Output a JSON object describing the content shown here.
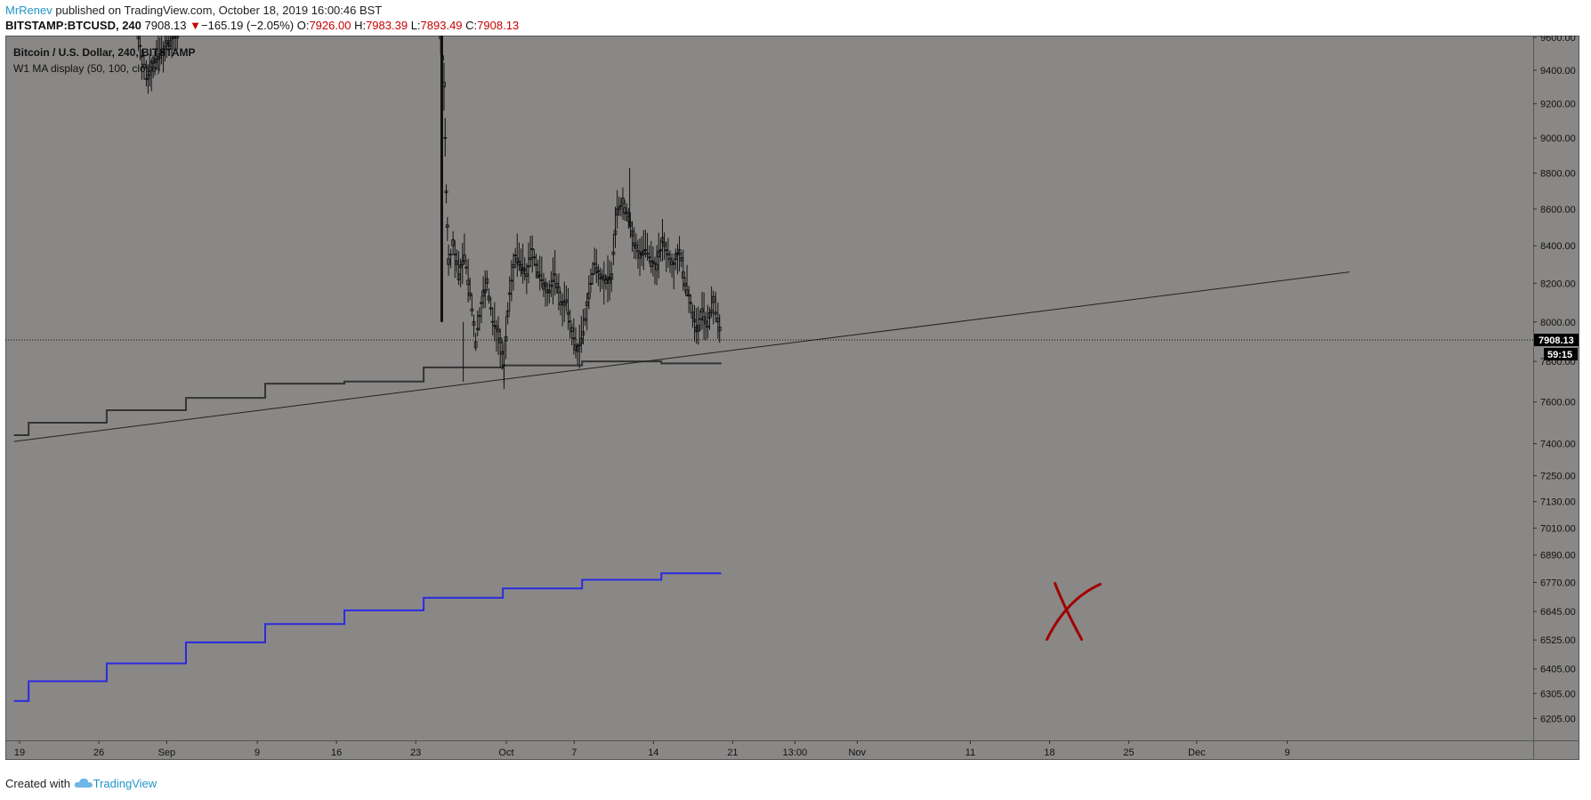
{
  "header": {
    "author": "MrRenev",
    "published_text": " published on TradingView.com, October 18, 2019 16:00:46 BST",
    "symbol": "BITSTAMP:BTCUSD, 240",
    "last": "7908.13",
    "down_arrow": "▼",
    "change": "−165.19 (−2.05%)",
    "o_label": "O:",
    "o_value": "7926.00",
    "h_label": "H:",
    "h_value": "7983.39",
    "l_label": "L:",
    "l_value": "7893.49",
    "c_label": "C:",
    "c_value": "7908.13"
  },
  "legend": {
    "series_title": "Bitcoin / U.S. Dollar, 240, BITSTAMP",
    "indicator": "W1 MA display (50, 100, close)"
  },
  "footer": {
    "created_with": "Created with",
    "brand": "TradingView"
  },
  "colors": {
    "chart_bg": "#8a8886",
    "candles": "#111111",
    "ma_fast": "#333333",
    "ma_slow": "#2a2ae0",
    "trendline": "#222222",
    "annotation_x": "#a00000",
    "price_label_bg": "#000000",
    "accent": "#2196c9"
  },
  "chart_data": {
    "type": "candlestick",
    "symbol": "BITSTAMP:BTCUSD",
    "interval": "240",
    "scale": "log",
    "ylim": [
      6150,
      9600
    ],
    "y_ticks": [
      "9600.00",
      "9400.00",
      "9200.00",
      "9000.00",
      "8800.00",
      "8600.00",
      "8400.00",
      "8200.00",
      "8000.00",
      "7800.00",
      "7600.00",
      "7400.00",
      "7250.00",
      "7130.00",
      "7010.00",
      "6890.00",
      "6770.00",
      "6645.00",
      "6525.00",
      "6405.00",
      "6305.00",
      "6205.00"
    ],
    "x_ticks": [
      {
        "day": 0,
        "label": "19"
      },
      {
        "day": 7,
        "label": "26"
      },
      {
        "day": 13,
        "label": "Sep"
      },
      {
        "day": 21,
        "label": "9"
      },
      {
        "day": 28,
        "label": "16"
      },
      {
        "day": 35,
        "label": "23"
      },
      {
        "day": 43,
        "label": "Oct"
      },
      {
        "day": 49,
        "label": "7"
      },
      {
        "day": 56,
        "label": "14"
      },
      {
        "day": 63,
        "label": "21"
      },
      {
        "day": 68.5,
        "label": "13:00"
      },
      {
        "day": 74,
        "label": "Nov"
      },
      {
        "day": 84,
        "label": "11"
      },
      {
        "day": 91,
        "label": "18"
      },
      {
        "day": 98,
        "label": "25"
      },
      {
        "day": 104,
        "label": "Dec"
      },
      {
        "day": 112,
        "label": "9"
      }
    ],
    "price_path": [
      [
        10.5,
        9620
      ],
      [
        10.8,
        9480
      ],
      [
        11.2,
        9350
      ],
      [
        11.8,
        9440
      ],
      [
        12.4,
        9500
      ],
      [
        13.0,
        9560
      ],
      [
        13.6,
        9600
      ],
      [
        14.1,
        9620
      ],
      [
        37.2,
        9620
      ],
      [
        37.5,
        9300
      ],
      [
        37.7,
        8700
      ],
      [
        37.9,
        8300
      ],
      [
        38.3,
        8400
      ],
      [
        38.8,
        8250
      ],
      [
        39.3,
        8350
      ],
      [
        39.8,
        8150
      ],
      [
        40.3,
        7900
      ],
      [
        40.8,
        8100
      ],
      [
        41.3,
        8200
      ],
      [
        41.8,
        8000
      ],
      [
        42.3,
        7950
      ],
      [
        42.8,
        7780
      ],
      [
        43.3,
        8150
      ],
      [
        43.8,
        8350
      ],
      [
        44.3,
        8300
      ],
      [
        44.8,
        8250
      ],
      [
        45.3,
        8380
      ],
      [
        45.8,
        8260
      ],
      [
        46.3,
        8200
      ],
      [
        46.8,
        8150
      ],
      [
        47.3,
        8250
      ],
      [
        47.8,
        8100
      ],
      [
        48.3,
        8100
      ],
      [
        48.8,
        7950
      ],
      [
        49.3,
        7850
      ],
      [
        49.8,
        7950
      ],
      [
        50.3,
        8150
      ],
      [
        50.8,
        8300
      ],
      [
        51.3,
        8250
      ],
      [
        51.8,
        8200
      ],
      [
        52.3,
        8250
      ],
      [
        52.8,
        8600
      ],
      [
        53.3,
        8630
      ],
      [
        53.8,
        8560
      ],
      [
        54.3,
        8400
      ],
      [
        54.8,
        8360
      ],
      [
        55.3,
        8380
      ],
      [
        55.8,
        8320
      ],
      [
        56.3,
        8300
      ],
      [
        56.8,
        8420
      ],
      [
        57.3,
        8350
      ],
      [
        57.8,
        8300
      ],
      [
        58.3,
        8380
      ],
      [
        58.8,
        8200
      ],
      [
        59.3,
        8100
      ],
      [
        59.8,
        7950
      ],
      [
        60.3,
        8050
      ],
      [
        60.8,
        7980
      ],
      [
        61.3,
        8100
      ],
      [
        61.7,
        8000
      ],
      [
        62.0,
        7908.13
      ]
    ],
    "last_price": 7908.13,
    "countdown": "59:15",
    "ma_fast": {
      "period": 50,
      "steps": [
        [
          -0.5,
          7440
        ],
        [
          0.8,
          7500
        ],
        [
          7.7,
          7560
        ],
        [
          14.7,
          7620
        ],
        [
          21.7,
          7690
        ],
        [
          28.7,
          7700
        ],
        [
          35.7,
          7770
        ],
        [
          42.7,
          7780
        ],
        [
          49.7,
          7800
        ],
        [
          56.7,
          7790
        ],
        [
          62.0,
          7790
        ]
      ]
    },
    "ma_slow": {
      "period": 100,
      "steps": [
        [
          -0.5,
          6275
        ],
        [
          0.8,
          6355
        ],
        [
          7.7,
          6428
        ],
        [
          14.7,
          6515
        ],
        [
          21.7,
          6592
        ],
        [
          28.7,
          6650
        ],
        [
          35.7,
          6704
        ],
        [
          42.7,
          6744
        ],
        [
          49.7,
          6782
        ],
        [
          56.7,
          6810
        ],
        [
          62.0,
          6810
        ]
      ]
    },
    "trendline": {
      "start": [
        -0.5,
        7410
      ],
      "end": [
        117.5,
        8260
      ]
    },
    "annotations": [
      {
        "type": "cross",
        "day": 92.5,
        "price": 6640
      }
    ]
  }
}
